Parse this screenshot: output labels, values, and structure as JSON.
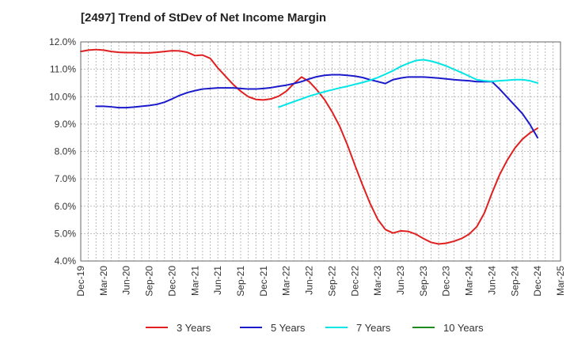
{
  "chart_data": {
    "type": "line",
    "title": "[2497]  Trend of StDev of Net Income Margin",
    "xlabel": "",
    "ylabel": "",
    "ylim": [
      4.0,
      12.0
    ],
    "y_ticks": [
      "4.0%",
      "5.0%",
      "6.0%",
      "7.0%",
      "8.0%",
      "9.0%",
      "10.0%",
      "11.0%",
      "12.0%"
    ],
    "x_ticks": [
      "Dec-19",
      "Mar-20",
      "Jun-20",
      "Sep-20",
      "Dec-20",
      "Mar-21",
      "Jun-21",
      "Sep-21",
      "Dec-21",
      "Mar-22",
      "Jun-22",
      "Sep-22",
      "Dec-22",
      "Mar-23",
      "Jun-23",
      "Sep-23",
      "Dec-23",
      "Mar-24",
      "Jun-24",
      "Sep-24",
      "Dec-24",
      "Mar-25"
    ],
    "x_range": [
      "2019-12",
      "2025-03"
    ],
    "grid": true,
    "legend_position": "bottom",
    "series": [
      {
        "name": "3 Years",
        "color": "#e02020",
        "x": [
          "2019-12",
          "2020-01",
          "2020-02",
          "2020-03",
          "2020-04",
          "2020-05",
          "2020-06",
          "2020-07",
          "2020-08",
          "2020-09",
          "2020-10",
          "2020-11",
          "2020-12",
          "2021-01",
          "2021-02",
          "2021-03",
          "2021-04",
          "2021-05",
          "2021-06",
          "2021-07",
          "2021-08",
          "2021-09",
          "2021-10",
          "2021-11",
          "2021-12",
          "2022-01",
          "2022-02",
          "2022-03",
          "2022-04",
          "2022-05",
          "2022-06",
          "2022-07",
          "2022-08",
          "2022-09",
          "2022-10",
          "2022-11",
          "2022-12",
          "2023-01",
          "2023-02",
          "2023-03",
          "2023-04",
          "2023-05",
          "2023-06",
          "2023-07",
          "2023-08",
          "2023-09",
          "2023-10",
          "2023-11",
          "2023-12",
          "2024-01",
          "2024-02",
          "2024-03",
          "2024-04",
          "2024-05",
          "2024-06",
          "2024-07",
          "2024-08",
          "2024-09",
          "2024-10",
          "2024-11",
          "2024-12"
        ],
        "y": [
          11.65,
          11.7,
          11.72,
          11.7,
          11.65,
          11.62,
          11.61,
          11.61,
          11.6,
          11.6,
          11.62,
          11.65,
          11.68,
          11.67,
          11.62,
          11.5,
          11.52,
          11.4,
          11.05,
          10.75,
          10.45,
          10.2,
          10.0,
          9.9,
          9.88,
          9.92,
          10.02,
          10.2,
          10.48,
          10.72,
          10.55,
          10.25,
          9.9,
          9.45,
          8.92,
          8.25,
          7.5,
          6.78,
          6.1,
          5.52,
          5.15,
          5.02,
          5.1,
          5.08,
          4.98,
          4.82,
          4.68,
          4.62,
          4.65,
          4.72,
          4.82,
          4.98,
          5.25,
          5.75,
          6.48,
          7.15,
          7.68,
          8.12,
          8.45,
          8.68,
          8.85
        ]
      },
      {
        "name": "5 Years",
        "color": "#1a1acc",
        "x": [
          "2020-02",
          "2020-03",
          "2020-04",
          "2020-05",
          "2020-06",
          "2020-07",
          "2020-08",
          "2020-09",
          "2020-10",
          "2020-11",
          "2020-12",
          "2021-01",
          "2021-02",
          "2021-03",
          "2021-04",
          "2021-05",
          "2021-06",
          "2021-07",
          "2021-08",
          "2021-09",
          "2021-10",
          "2021-11",
          "2021-12",
          "2022-01",
          "2022-02",
          "2022-03",
          "2022-04",
          "2022-05",
          "2022-06",
          "2022-07",
          "2022-08",
          "2022-09",
          "2022-10",
          "2022-11",
          "2022-12",
          "2023-01",
          "2023-02",
          "2023-03",
          "2023-04",
          "2023-05",
          "2023-06",
          "2023-07",
          "2023-08",
          "2023-09",
          "2023-10",
          "2023-11",
          "2023-12",
          "2024-01",
          "2024-02",
          "2024-03",
          "2024-04",
          "2024-05",
          "2024-06",
          "2024-07",
          "2024-08",
          "2024-09",
          "2024-10",
          "2024-11",
          "2024-12"
        ],
        "y": [
          9.65,
          9.65,
          9.63,
          9.6,
          9.6,
          9.62,
          9.65,
          9.68,
          9.72,
          9.8,
          9.92,
          10.05,
          10.15,
          10.22,
          10.28,
          10.3,
          10.32,
          10.32,
          10.32,
          10.3,
          10.28,
          10.28,
          10.3,
          10.33,
          10.38,
          10.42,
          10.48,
          10.55,
          10.65,
          10.73,
          10.78,
          10.8,
          10.8,
          10.78,
          10.75,
          10.7,
          10.62,
          10.55,
          10.48,
          10.62,
          10.68,
          10.72,
          10.72,
          10.72,
          10.7,
          10.68,
          10.65,
          10.62,
          10.6,
          10.58,
          10.55,
          10.55,
          10.55,
          10.28,
          9.98,
          9.68,
          9.38,
          8.98,
          8.5
        ]
      },
      {
        "name": "7 Years",
        "color": "#00e5e5",
        "x": [
          "2022-02",
          "2022-03",
          "2022-04",
          "2022-05",
          "2022-06",
          "2022-07",
          "2022-08",
          "2022-09",
          "2022-10",
          "2022-11",
          "2022-12",
          "2023-01",
          "2023-02",
          "2023-03",
          "2023-04",
          "2023-05",
          "2023-06",
          "2023-07",
          "2023-08",
          "2023-09",
          "2023-10",
          "2023-11",
          "2023-12",
          "2024-01",
          "2024-02",
          "2024-03",
          "2024-04",
          "2024-05",
          "2024-06",
          "2024-07",
          "2024-08",
          "2024-09",
          "2024-10",
          "2024-11",
          "2024-12"
        ],
        "y": [
          9.62,
          9.72,
          9.82,
          9.92,
          10.02,
          10.1,
          10.18,
          10.25,
          10.32,
          10.38,
          10.45,
          10.52,
          10.6,
          10.7,
          10.82,
          10.95,
          11.1,
          11.22,
          11.32,
          11.35,
          11.3,
          11.22,
          11.12,
          11.0,
          10.88,
          10.75,
          10.62,
          10.58,
          10.56,
          10.58,
          10.6,
          10.62,
          10.62,
          10.58,
          10.5
        ]
      },
      {
        "name": "10 Years",
        "color": "#1f8a1f",
        "x": [],
        "y": []
      }
    ]
  }
}
